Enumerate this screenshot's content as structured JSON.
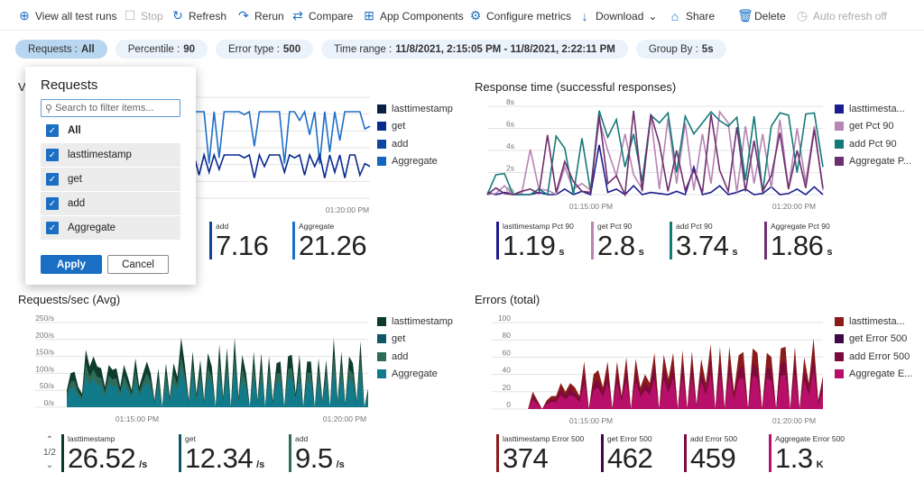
{
  "toolbar": [
    {
      "label": "View all test runs",
      "icon": "arrow-circle-right-icon",
      "glyph": "⊕",
      "enabled": true
    },
    {
      "label": "Stop",
      "icon": "stop-checkbox-icon",
      "glyph": "☐",
      "enabled": false
    },
    {
      "label": "Refresh",
      "icon": "refresh-icon",
      "glyph": "↻",
      "enabled": true
    },
    {
      "label": "Rerun",
      "icon": "rerun-icon",
      "glyph": "↷",
      "enabled": true
    },
    {
      "label": "Compare",
      "icon": "compare-arrows-icon",
      "glyph": "⇄",
      "enabled": true
    },
    {
      "label": "App Components",
      "icon": "app-components-icon",
      "glyph": "⊞",
      "enabled": true
    },
    {
      "label": "Configure metrics",
      "icon": "gear-icon",
      "glyph": "⚙",
      "enabled": true
    },
    {
      "label": "Download",
      "icon": "download-icon",
      "glyph": "↓",
      "enabled": true,
      "chevron": "⌄"
    },
    {
      "label": "Share",
      "icon": "share-icon",
      "glyph": "⌂",
      "enabled": true
    },
    {
      "label": "Delete",
      "icon": "trash-icon",
      "glyph": "🗑",
      "enabled": true
    },
    {
      "label": "Auto refresh off",
      "icon": "clock-icon",
      "glyph": "◷",
      "enabled": false
    }
  ],
  "filters": [
    {
      "label": "Requests :",
      "value": "All",
      "active": true
    },
    {
      "label": "Percentile :",
      "value": "90"
    },
    {
      "label": "Error type :",
      "value": "500"
    },
    {
      "label": "Time range :",
      "value": "11/8/2021, 2:15:05 PM - 11/8/2021, 2:22:11 PM"
    },
    {
      "label": "Group By :",
      "value": "5s"
    }
  ],
  "popup": {
    "title": "Requests",
    "search_placeholder": "Search to filter items...",
    "options": [
      "All",
      "lasttimestamp",
      "get",
      "add",
      "Aggregate"
    ],
    "apply": "Apply",
    "cancel": "Cancel"
  },
  "chart_data": [
    {
      "type": "line",
      "title": "V",
      "xticks": [
        "01:20:00 PM"
      ],
      "legend": [
        "lasttimestamp",
        "get",
        "add",
        "Aggregate"
      ],
      "colors": [
        "#0a1f44",
        "#0a2a8f",
        "#0d47a1",
        "#1565c0"
      ],
      "series": [
        {
          "name": "Aggregate",
          "values": [
            30,
            30,
            30,
            12,
            30,
            14,
            30,
            30,
            30,
            30,
            29,
            30,
            18,
            30,
            30,
            30,
            30,
            30,
            12,
            30,
            30,
            27,
            30,
            22,
            30,
            12,
            30,
            16,
            30,
            20,
            30,
            30,
            30,
            30,
            24,
            25
          ]
        },
        {
          "name": "get",
          "values": [
            15,
            8,
            15,
            9,
            15,
            10,
            15,
            15,
            15,
            15,
            14,
            15,
            7,
            15,
            11,
            15,
            15,
            15,
            9,
            15,
            14,
            15,
            8,
            15,
            11,
            15,
            7,
            15,
            9,
            15,
            7,
            15,
            15,
            8,
            12,
            11
          ]
        }
      ],
      "stats": [
        {
          "label": "add",
          "value": "7.16",
          "color": "#0d47a1"
        },
        {
          "label": "Aggregate",
          "value": "21.26",
          "color": "#1e6fc8"
        }
      ]
    },
    {
      "type": "line",
      "title": "Response time (successful responses)",
      "yticks": [
        "0s",
        "2s",
        "4s",
        "6s",
        "8s"
      ],
      "ylim": [
        0,
        8
      ],
      "xticks": [
        "01:15:00 PM",
        "01:20:00 PM"
      ],
      "legend": [
        "lasttimesta...",
        "get Pct 90",
        "add Pct 90",
        "Aggregate P..."
      ],
      "colors": [
        "#1c1c8f",
        "#b784b5",
        "#137a78",
        "#6e2f6e"
      ],
      "series": [
        {
          "name": "lasttimesta...",
          "values": [
            0.2,
            0,
            0.2,
            0,
            0,
            0,
            0.2,
            0,
            0,
            0.5,
            0,
            0.3,
            0,
            4.5,
            0.2,
            0.5,
            0,
            0.8,
            0,
            0.2,
            0.1,
            0,
            0.3,
            0,
            2.5,
            0,
            0.2,
            0.8,
            0,
            0.2,
            0.5,
            0,
            0.1,
            0.7,
            0,
            0.1,
            0.5,
            0,
            0.7,
            0
          ]
        },
        {
          "name": "get Pct 90",
          "values": [
            0,
            0.1,
            0.8,
            0,
            0.1,
            4.1,
            0.5,
            0.4,
            0,
            2.5,
            0.5,
            1,
            0.4,
            6.8,
            4,
            1.7,
            5.5,
            1.8,
            0.5,
            7.1,
            0.5,
            6.9,
            1,
            6.5,
            0.4,
            5.5,
            1,
            7.5,
            6.5,
            0.2,
            6.2,
            1,
            5.5,
            0.6,
            6.8,
            0.5,
            6,
            1.1,
            6.2,
            0.4
          ]
        },
        {
          "name": "add Pct 90",
          "values": [
            0,
            1.8,
            1.9,
            0,
            0,
            0,
            0.5,
            0,
            5.3,
            4.2,
            0,
            5.1,
            0.3,
            7.6,
            5.2,
            6.8,
            2.5,
            5.5,
            1.2,
            7.2,
            6.5,
            7.4,
            2,
            7.1,
            5.5,
            6.5,
            7.5,
            6.7,
            6.2,
            7,
            1.3,
            7.1,
            0.2,
            6.2,
            7.4,
            7.2,
            2,
            7.3,
            7.4,
            2.5
          ]
        },
        {
          "name": "Aggregate P...",
          "values": [
            0,
            0.6,
            0.1,
            0,
            0.3,
            0.5,
            0.1,
            5.4,
            0.2,
            3,
            1.2,
            0.3,
            0.2,
            7.2,
            1,
            1.7,
            0,
            7.6,
            0.3,
            7.3,
            4.6,
            0.3,
            4,
            0.4,
            2.2,
            0.2,
            7.3,
            2.2,
            0.3,
            6.1,
            0.3,
            4.9,
            0.3,
            1.7,
            5.6,
            0.5,
            4,
            0.6,
            5.9,
            0.6
          ]
        }
      ],
      "stats": [
        {
          "label": "lasttimestamp Pct 90",
          "value": "1.19",
          "unit": "s",
          "color": "#1c1c8f"
        },
        {
          "label": "get Pct 90",
          "value": "2.8",
          "unit": "s",
          "color": "#b784b5"
        },
        {
          "label": "add Pct 90",
          "value": "3.74",
          "unit": "s",
          "color": "#137a78"
        },
        {
          "label": "Aggregate Pct 90",
          "value": "1.86",
          "unit": "s",
          "color": "#6e2f6e"
        }
      ]
    },
    {
      "type": "area",
      "title": "Requests/sec (Avg)",
      "yticks": [
        "0/s",
        "50/s",
        "100/s",
        "150/s",
        "200/s",
        "250/s"
      ],
      "ylim": [
        0,
        250
      ],
      "xticks": [
        "01:15:00 PM",
        "01:20:00 PM"
      ],
      "legend": [
        "lasttimestamp",
        "get",
        "add",
        "Aggregate"
      ],
      "colors": [
        "#0d3b2e",
        "#0e5766",
        "#2f6b59",
        "#117a8b"
      ],
      "series": [
        {
          "name": "total",
          "values": [
            50,
            100,
            105,
            60,
            40,
            170,
            120,
            150,
            120,
            115,
            60,
            125,
            110,
            115,
            60,
            125,
            90,
            50,
            145,
            60,
            100,
            135,
            100,
            20,
            115,
            0,
            130,
            30,
            130,
            90,
            205,
            120,
            20,
            165,
            40,
            140,
            20,
            160,
            120,
            0,
            185,
            30,
            175,
            0,
            205,
            30,
            155,
            100,
            0,
            165,
            20,
            160,
            0,
            150,
            20,
            130,
            135,
            0,
            150,
            155,
            40,
            155,
            0,
            135,
            135,
            0,
            145,
            20,
            140,
            0,
            205,
            20,
            165,
            10,
            150,
            130,
            20,
            195,
            0,
            55
          ]
        }
      ],
      "pager": "1/2",
      "stats": [
        {
          "label": "lasttimestamp",
          "value": "26.52",
          "unit": "/s",
          "color": "#0d3b2e"
        },
        {
          "label": "get",
          "value": "12.34",
          "unit": "/s",
          "color": "#0e5766"
        },
        {
          "label": "add",
          "value": "9.5",
          "unit": "/s",
          "color": "#2f6b59"
        }
      ]
    },
    {
      "type": "area",
      "title": "Errors (total)",
      "yticks": [
        "0",
        "20",
        "40",
        "60",
        "80",
        "100"
      ],
      "ylim": [
        0,
        100
      ],
      "xticks": [
        "01:15:00 PM",
        "01:20:00 PM"
      ],
      "legend": [
        "lasttimesta...",
        "get Error 500",
        "add Error 500",
        "Aggregate E..."
      ],
      "colors": [
        "#8b1a1a",
        "#3d0a47",
        "#7d0a3d",
        "#b8106a"
      ],
      "series": [
        {
          "name": "total",
          "values": [
            0,
            0,
            20,
            10,
            0,
            10,
            15,
            15,
            30,
            20,
            30,
            25,
            15,
            55,
            0,
            40,
            45,
            25,
            55,
            0,
            55,
            15,
            60,
            0,
            58,
            25,
            40,
            30,
            65,
            0,
            63,
            35,
            65,
            0,
            68,
            0,
            67,
            5,
            58,
            30,
            75,
            0,
            72,
            0,
            72,
            20,
            62,
            66,
            0,
            70,
            65,
            0,
            65,
            60,
            0,
            70,
            72,
            0,
            72,
            0,
            60,
            30,
            82,
            10,
            38
          ]
        }
      ],
      "stats": [
        {
          "label": "lasttimestamp Error 500",
          "value": "374",
          "color": "#8b1a1a"
        },
        {
          "label": "get Error 500",
          "value": "462",
          "color": "#3d0a47"
        },
        {
          "label": "add Error 500",
          "value": "459",
          "color": "#7d0a3d"
        },
        {
          "label": "Aggregate Error 500",
          "value": "1.3",
          "unit": "K",
          "color": "#b8106a"
        }
      ]
    }
  ]
}
